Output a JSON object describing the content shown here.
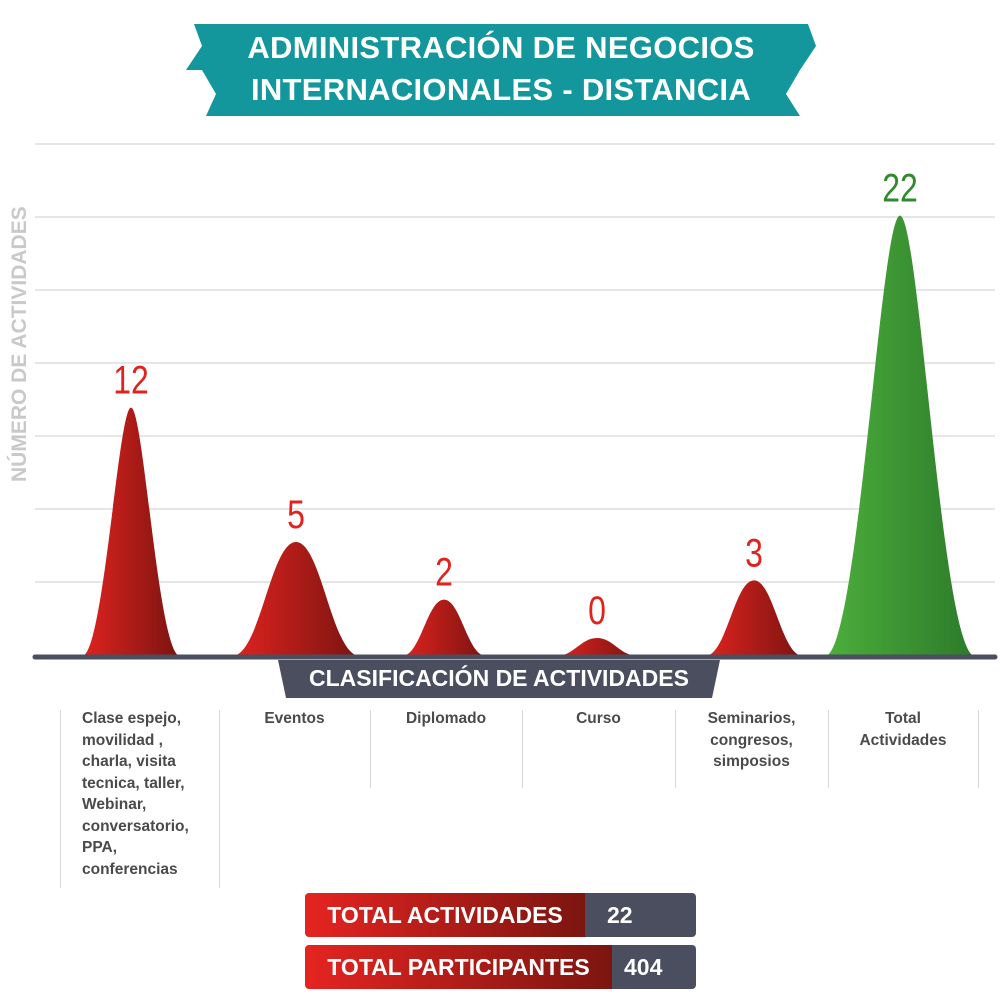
{
  "title": {
    "line1": "ADMINISTRACIÓN DE NEGOCIOS",
    "line2": "INTERNACIONALES - DISTANCIA"
  },
  "colors": {
    "banner": "#14979c",
    "red_light": "#e0231f",
    "red_dark": "#7a1410",
    "green_light": "#4caf3b",
    "green_dark": "#2c7a2a",
    "slate": "#4b4e5f",
    "value_red": "#e0231f",
    "value_green": "#2f8a2c"
  },
  "chart_data": {
    "type": "area",
    "title": "ADMINISTRACIÓN DE NEGOCIOS INTERNACIONALES - DISTANCIA",
    "xlabel": "CLASIFICACIÓN DE ACTIVIDADES",
    "ylabel": "NÚMERO DE ACTIVIDADES",
    "categories": [
      "Clase espejo, movilidad , charla, visita tecnica, taller, Webinar, conversatorio, PPA, conferencias",
      "Eventos",
      "Diplomado",
      "Curso",
      "Seminarios, congresos, simposios",
      "Total Actividades"
    ],
    "category_lines": [
      [
        "Clase espejo,",
        "movilidad ,",
        "charla, visita",
        "tecnica, taller,",
        "Webinar,",
        "conversatorio,",
        "PPA,",
        "conferencias"
      ],
      [
        "Eventos"
      ],
      [
        "Diplomado"
      ],
      [
        "Curso"
      ],
      [
        "Seminarios,",
        "congresos,",
        "simposios"
      ],
      [
        "Total",
        "Actividades"
      ]
    ],
    "values": [
      12,
      5,
      2,
      0,
      3,
      22
    ],
    "value_labels": [
      "12",
      "5",
      "2",
      "0",
      "3",
      "22"
    ],
    "grid": true
  },
  "totals": {
    "actividades_label": "TOTAL ACTIVIDADES",
    "actividades_value": "22",
    "participantes_label": "TOTAL PARTICIPANTES",
    "participantes_value": "404"
  }
}
